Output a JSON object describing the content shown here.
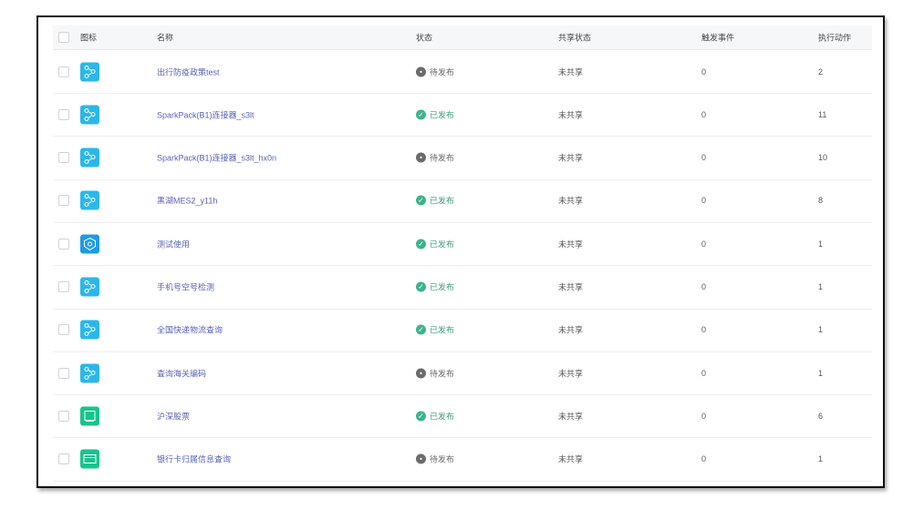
{
  "columns": {
    "icon": "图标",
    "name": "名称",
    "status": "状态",
    "share": "共享状态",
    "trigger": "触发事件",
    "actions": "执行动作"
  },
  "colors": {
    "published": "#3db389",
    "pending": "#6b6b6b",
    "flow_icon": "#2bb7ea",
    "shield_icon": "#1d9be6",
    "green_icon": "#19c38d"
  },
  "rows": [
    {
      "icon": "flow-icon",
      "name": "出行防疫政策test",
      "status": "待发布",
      "share": "未共享",
      "trigger": "0",
      "actions": "2"
    },
    {
      "icon": "flow-icon",
      "name": "SparkPack(B1)连接器_s3lt",
      "status": "已发布",
      "share": "未共享",
      "trigger": "0",
      "actions": "11"
    },
    {
      "icon": "flow-icon",
      "name": "SparkPack(B1)连接器_s3lt_hx0n",
      "status": "待发布",
      "share": "未共享",
      "trigger": "0",
      "actions": "10"
    },
    {
      "icon": "flow-icon",
      "name": "黑湖MES2_y11h",
      "status": "已发布",
      "share": "未共享",
      "trigger": "0",
      "actions": "8"
    },
    {
      "icon": "shield-icon",
      "name": "测试使用",
      "status": "已发布",
      "share": "未共享",
      "trigger": "0",
      "actions": "1"
    },
    {
      "icon": "flow-icon",
      "name": "手机号空号检测",
      "status": "已发布",
      "share": "未共享",
      "trigger": "0",
      "actions": "1"
    },
    {
      "icon": "flow-icon",
      "name": "全国快递物流查询",
      "status": "已发布",
      "share": "未共享",
      "trigger": "0",
      "actions": "1"
    },
    {
      "icon": "flow-icon",
      "name": "查询海关编码",
      "status": "待发布",
      "share": "未共享",
      "trigger": "0",
      "actions": "1"
    },
    {
      "icon": "chart-icon",
      "name": "沪深股票",
      "status": "已发布",
      "share": "未共享",
      "trigger": "0",
      "actions": "6"
    },
    {
      "icon": "card-icon",
      "name": "银行卡归属信息查询",
      "status": "待发布",
      "share": "未共享",
      "trigger": "0",
      "actions": "1"
    }
  ]
}
